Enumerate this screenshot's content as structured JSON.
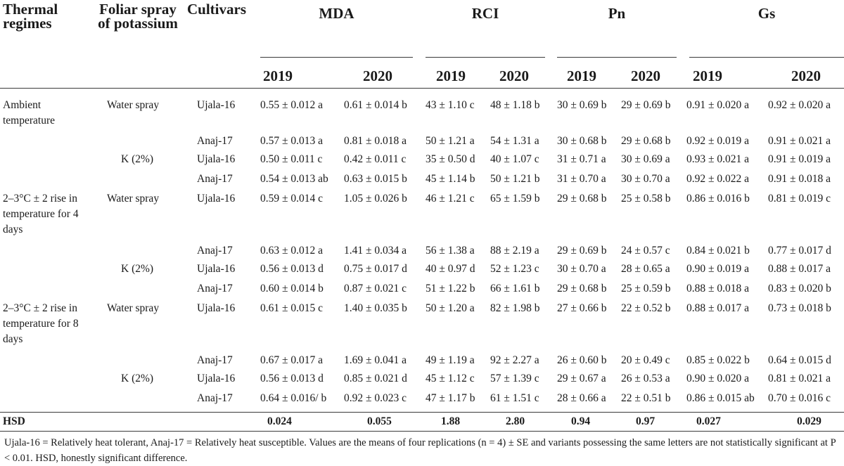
{
  "headers": {
    "thermal": "Thermal regimes",
    "foliar": "Foliar spray of potassium",
    "cultivars": "Cultivars",
    "mda": "MDA",
    "rci": "RCI",
    "pn": "Pn",
    "gs": "Gs",
    "y2019": "2019",
    "y2020": "2020"
  },
  "regimes": [
    "Ambient temperature",
    "2–3°C ± 2 rise in temperature for 4 days",
    "2–3°C ± 2 rise in temperature for 8 days"
  ],
  "sprays": {
    "water": "Water spray",
    "k": "K (2%)"
  },
  "rows": [
    {
      "cultivar": "Ujala-16",
      "mda19": "0.55 ± 0.012 a",
      "mda20": "0.61 ± 0.014 b",
      "rci19": "43 ± 1.10 c",
      "rci20": "48 ± 1.18 b",
      "pn19": "30 ± 0.69 b",
      "pn20": "29 ± 0.69 b",
      "gs19": "0.91 ± 0.020 a",
      "gs20": "0.92 ± 0.020 a"
    },
    {
      "cultivar": "Anaj-17",
      "mda19": "0.57 ± 0.013 a",
      "mda20": "0.81 ± 0.018 a",
      "rci19": "50 ± 1.21 a",
      "rci20": "54 ± 1.31 a",
      "pn19": "30 ± 0.68 b",
      "pn20": "29 ± 0.68 b",
      "gs19": "0.92 ± 0.019 a",
      "gs20": "0.91 ± 0.021 a"
    },
    {
      "cultivar": "Ujala-16",
      "mda19": "0.50 ± 0.011 c",
      "mda20": "0.42 ± 0.011 c",
      "rci19": "35 ± 0.50 d",
      "rci20": "40 ± 1.07 c",
      "pn19": "31 ± 0.71 a",
      "pn20": "30 ± 0.69 a",
      "gs19": "0.93 ± 0.021 a",
      "gs20": "0.91 ± 0.019 a"
    },
    {
      "cultivar": "Anaj-17",
      "mda19": "0.54 ± 0.013 ab",
      "mda20": "0.63 ± 0.015 b",
      "rci19": "45 ± 1.14 b",
      "rci20": "50 ± 1.21 b",
      "pn19": "31 ± 0.70 a",
      "pn20": "30 ± 0.70 a",
      "gs19": "0.92 ± 0.022 a",
      "gs20": "0.91 ± 0.018 a"
    },
    {
      "cultivar": "Ujala-16",
      "mda19": "0.59 ± 0.014 c",
      "mda20": "1.05 ± 0.026 b",
      "rci19": "46 ± 1.21 c",
      "rci20": "65 ± 1.59 b",
      "pn19": "29 ± 0.68 b",
      "pn20": "25 ± 0.58 b",
      "gs19": "0.86 ± 0.016 b",
      "gs20": "0.81 ± 0.019 c"
    },
    {
      "cultivar": "Anaj-17",
      "mda19": "0.63 ± 0.012 a",
      "mda20": "1.41 ± 0.034 a",
      "rci19": "56 ± 1.38 a",
      "rci20": "88 ± 2.19 a",
      "pn19": "29 ± 0.69 b",
      "pn20": "24 ± 0.57 c",
      "gs19": "0.84 ± 0.021 b",
      "gs20": "0.77 ± 0.017 d"
    },
    {
      "cultivar": "Ujala-16",
      "mda19": "0.56 ± 0.013 d",
      "mda20": "0.75 ± 0.017 d",
      "rci19": "40 ± 0.97 d",
      "rci20": "52 ± 1.23 c",
      "pn19": "30 ± 0.70 a",
      "pn20": "28 ± 0.65 a",
      "gs19": "0.90 ± 0.019 a",
      "gs20": "0.88 ± 0.017 a"
    },
    {
      "cultivar": "Anaj-17",
      "mda19": "0.60 ± 0.014 b",
      "mda20": "0.87 ± 0.021 c",
      "rci19": "51 ± 1.22 b",
      "rci20": "66 ± 1.61 b",
      "pn19": "29 ± 0.68 b",
      "pn20": "25 ± 0.59 b",
      "gs19": "0.88 ± 0.018 a",
      "gs20": "0.83 ± 0.020 b"
    },
    {
      "cultivar": "Ujala-16",
      "mda19": "0.61 ± 0.015 c",
      "mda20": "1.40 ± 0.035 b",
      "rci19": "50 ± 1.20 a",
      "rci20": "82 ± 1.98 b",
      "pn19": "27 ± 0.66 b",
      "pn20": "22 ± 0.52 b",
      "gs19": "0.88 ± 0.017 a",
      "gs20": "0.73 ± 0.018 b"
    },
    {
      "cultivar": "Anaj-17",
      "mda19": "0.67 ± 0.017 a",
      "mda20": "1.69 ± 0.041 a",
      "rci19": "49 ± 1.19 a",
      "rci20": "92 ± 2.27 a",
      "pn19": "26 ± 0.60 b",
      "pn20": "20 ± 0.49 c",
      "gs19": "0.85 ± 0.022 b",
      "gs20": "0.64 ± 0.015 d"
    },
    {
      "cultivar": "Ujala-16",
      "mda19": "0.56 ± 0.013 d",
      "mda20": "0.85 ± 0.021 d",
      "rci19": "45 ± 1.12 c",
      "rci20": "57 ± 1.39 c",
      "pn19": "29 ± 0.67 a",
      "pn20": "26 ± 0.53 a",
      "gs19": "0.90 ± 0.020 a",
      "gs20": "0.81 ± 0.021 a"
    },
    {
      "cultivar": "Anaj-17",
      "mda19": "0.64 ± 0.016/ b",
      "mda20": "0.92 ± 0.023 c",
      "rci19": "47 ± 1.17 b",
      "rci20": "61 ± 1.51 c",
      "pn19": "28 ± 0.66 a",
      "pn20": "22 ± 0.51 b",
      "gs19": "0.86 ± 0.015 ab",
      "gs20": "0.70 ± 0.016 c"
    }
  ],
  "hsd": {
    "label": "HSD",
    "mda19": "0.024",
    "mda20": "0.055",
    "rci19": "1.88",
    "rci20": "2.80",
    "pn19": "0.94",
    "pn20": "0.97",
    "gs19": "0.027",
    "gs20": "0.029"
  },
  "footnote": "Ujala-16 = Relatively heat tolerant, Anaj-17 = Relatively heat susceptible. Values are the means of four replications (n = 4) ± SE and variants possessing the same letters are not statistically significant at P < 0.01. HSD, honestly significant difference."
}
